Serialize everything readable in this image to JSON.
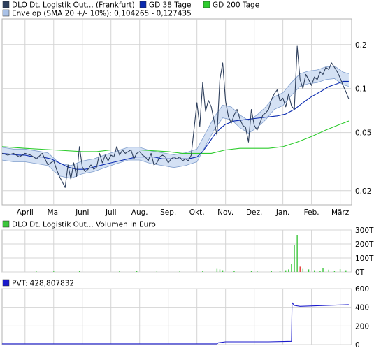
{
  "colors": {
    "price": "#2e3f5c",
    "gd38": "#0a2ab0",
    "gd200": "#2ecc2e",
    "envelope_fill": "#cddcf2",
    "envelope_line": "#7f9dcc",
    "grid": "#d4d4d4",
    "volume_green": "#3cc63c",
    "volume_red": "#e23c3c",
    "pvt": "#1a1acc"
  },
  "legend": {
    "price_label": "DLO Dt. Logistik Out... (Frankfurt)",
    "gd38_label": "GD 38 Tage",
    "gd200_label": "GD 200 Tage",
    "envelope_label": "Envelop (SMA 20 +/- 10%): 0,104265 - 0,127435",
    "volume_label": "DLO Dt. Logistik Out... Volumen in Euro",
    "pvt_label": "PVT: 428,807832"
  },
  "chart_data": [
    {
      "type": "line",
      "title": "DLO Dt. Logistik Out... (Frankfurt)",
      "y_scale": "log",
      "ylim": [
        0.016,
        0.3
      ],
      "y_ticks": [
        "0,02",
        "0,05",
        "0,1",
        "0,2"
      ],
      "y_tick_values": [
        0.02,
        0.05,
        0.1,
        0.2
      ],
      "x_ticks": [
        "April",
        "Mai",
        "Juni",
        "Juli",
        "Aug.",
        "Sep.",
        "Okt.",
        "Nov.",
        "Dez.",
        "Jan.",
        "Feb.",
        "März"
      ],
      "x_tick_values": [
        1.0,
        2.0,
        3.0,
        4.0,
        5.0,
        6.0,
        7.0,
        8.0,
        9.0,
        10.0,
        11.0,
        12.0
      ],
      "xlim": [
        0.2,
        12.4
      ],
      "grid": true,
      "legend_position": "top",
      "series": [
        {
          "name": "DLO Dt. Logistik Out... (Frankfurt)",
          "x": [
            0.2,
            0.4,
            0.6,
            0.8,
            1.0,
            1.2,
            1.4,
            1.6,
            1.8,
            2.0,
            2.1,
            2.2,
            2.3,
            2.4,
            2.5,
            2.6,
            2.7,
            2.8,
            2.9,
            3.0,
            3.1,
            3.2,
            3.3,
            3.4,
            3.5,
            3.6,
            3.7,
            3.8,
            3.9,
            4.0,
            4.1,
            4.2,
            4.3,
            4.4,
            4.5,
            4.6,
            4.7,
            4.8,
            4.9,
            5.0,
            5.1,
            5.2,
            5.3,
            5.4,
            5.5,
            5.6,
            5.7,
            5.8,
            5.9,
            6.0,
            6.1,
            6.2,
            6.3,
            6.4,
            6.5,
            6.6,
            6.7,
            6.8,
            6.9,
            7.0,
            7.1,
            7.2,
            7.3,
            7.4,
            7.5,
            7.6,
            7.7,
            7.8,
            7.9,
            8.0,
            8.1,
            8.2,
            8.3,
            8.4,
            8.5,
            8.6,
            8.7,
            8.8,
            8.9,
            9.0,
            9.1,
            9.2,
            9.3,
            9.4,
            9.5,
            9.6,
            9.7,
            9.8,
            9.9,
            10.0,
            10.1,
            10.2,
            10.3,
            10.4,
            10.5,
            10.6,
            10.7,
            10.8,
            10.9,
            11.0,
            11.1,
            11.2,
            11.3,
            11.4,
            11.5,
            11.6,
            11.7,
            11.8,
            11.9,
            12.0,
            12.1,
            12.2,
            12.3
          ],
          "y": [
            0.036,
            0.035,
            0.036,
            0.034,
            0.036,
            0.035,
            0.033,
            0.036,
            0.03,
            0.032,
            0.028,
            0.025,
            0.023,
            0.021,
            0.03,
            0.024,
            0.031,
            0.025,
            0.04,
            0.029,
            0.027,
            0.028,
            0.03,
            0.028,
            0.029,
            0.036,
            0.031,
            0.035,
            0.032,
            0.035,
            0.034,
            0.04,
            0.035,
            0.038,
            0.036,
            0.037,
            0.038,
            0.033,
            0.036,
            0.037,
            0.035,
            0.034,
            0.032,
            0.036,
            0.03,
            0.031,
            0.034,
            0.035,
            0.034,
            0.031,
            0.033,
            0.034,
            0.033,
            0.034,
            0.032,
            0.033,
            0.032,
            0.035,
            0.053,
            0.08,
            0.055,
            0.11,
            0.07,
            0.083,
            0.075,
            0.06,
            0.048,
            0.115,
            0.15,
            0.082,
            0.064,
            0.058,
            0.066,
            0.072,
            0.062,
            0.056,
            0.054,
            0.043,
            0.072,
            0.056,
            0.052,
            0.058,
            0.066,
            0.068,
            0.072,
            0.084,
            0.092,
            0.098,
            0.082,
            0.086,
            0.075,
            0.092,
            0.076,
            0.072,
            0.195,
            0.115,
            0.1,
            0.125,
            0.115,
            0.105,
            0.12,
            0.115,
            0.13,
            0.125,
            0.14,
            0.135,
            0.15,
            0.14,
            0.13,
            0.118,
            0.105,
            0.095,
            0.085
          ]
        },
        {
          "name": "GD 38 Tage",
          "x": [
            0.2,
            0.5,
            0.8,
            1.0,
            1.3,
            1.6,
            1.9,
            2.2,
            2.5,
            2.8,
            3.1,
            3.4,
            3.7,
            4.0,
            4.3,
            4.6,
            4.9,
            5.2,
            5.5,
            5.8,
            6.1,
            6.4,
            6.7,
            7.0,
            7.2,
            7.4,
            7.6,
            7.8,
            8.0,
            8.3,
            8.6,
            8.9,
            9.2,
            9.5,
            9.8,
            10.1,
            10.4,
            10.7,
            11.0,
            11.3,
            11.6,
            11.9,
            12.1,
            12.3
          ],
          "y": [
            0.036,
            0.0355,
            0.035,
            0.035,
            0.034,
            0.034,
            0.033,
            0.031,
            0.029,
            0.028,
            0.028,
            0.029,
            0.03,
            0.031,
            0.032,
            0.033,
            0.034,
            0.034,
            0.034,
            0.033,
            0.033,
            0.033,
            0.033,
            0.034,
            0.037,
            0.042,
            0.048,
            0.053,
            0.057,
            0.06,
            0.061,
            0.062,
            0.063,
            0.064,
            0.065,
            0.067,
            0.072,
            0.08,
            0.088,
            0.095,
            0.103,
            0.108,
            0.112,
            0.112
          ]
        },
        {
          "name": "GD 200 Tage",
          "x": [
            0.2,
            1.0,
            2.0,
            3.0,
            3.5,
            4.0,
            5.0,
            6.0,
            6.5,
            7.0,
            7.5,
            8.0,
            8.5,
            9.0,
            9.5,
            10.0,
            10.5,
            11.0,
            11.5,
            12.0,
            12.3
          ],
          "y": [
            0.04,
            0.039,
            0.038,
            0.037,
            0.037,
            0.038,
            0.038,
            0.037,
            0.036,
            0.036,
            0.036,
            0.038,
            0.039,
            0.039,
            0.039,
            0.04,
            0.043,
            0.047,
            0.052,
            0.057,
            0.06
          ]
        }
      ],
      "envelope": {
        "name": "Envelop (SMA 20 +/- 10%)",
        "x": [
          0.2,
          0.6,
          1.0,
          1.4,
          1.8,
          2.2,
          2.6,
          3.0,
          3.4,
          3.8,
          4.2,
          4.6,
          5.0,
          5.4,
          5.8,
          6.2,
          6.6,
          7.0,
          7.3,
          7.6,
          7.9,
          8.2,
          8.5,
          8.8,
          9.1,
          9.4,
          9.7,
          10.0,
          10.3,
          10.6,
          10.9,
          11.2,
          11.5,
          11.8,
          12.1,
          12.3
        ],
        "mid": [
          0.036,
          0.035,
          0.035,
          0.034,
          0.033,
          0.028,
          0.027,
          0.029,
          0.03,
          0.032,
          0.034,
          0.036,
          0.036,
          0.034,
          0.033,
          0.032,
          0.033,
          0.035,
          0.045,
          0.058,
          0.07,
          0.068,
          0.06,
          0.055,
          0.06,
          0.068,
          0.08,
          0.085,
          0.1,
          0.115,
          0.12,
          0.122,
          0.128,
          0.13,
          0.118,
          0.115
        ],
        "band": 0.1
      }
    },
    {
      "type": "bar",
      "title": "DLO Dt. Logistik Out... Volumen in Euro",
      "ylim": [
        0,
        300000
      ],
      "y_ticks": [
        "0T",
        "100T",
        "200T",
        "300T"
      ],
      "y_tick_values": [
        0,
        100000,
        200000,
        300000
      ],
      "xlim": [
        0.2,
        12.4
      ],
      "x": [
        1.4,
        2.0,
        2.9,
        4.3,
        4.9,
        5.6,
        6.4,
        7.2,
        7.7,
        7.8,
        7.9,
        8.3,
        8.9,
        9.1,
        9.6,
        9.9,
        10.1,
        10.2,
        10.3,
        10.4,
        10.5,
        10.6,
        10.7,
        10.9,
        11.1,
        11.3,
        11.4,
        11.6,
        11.8,
        12.0,
        12.2
      ],
      "values": [
        3000,
        4000,
        8000,
        6000,
        10000,
        3000,
        4000,
        6000,
        22000,
        18000,
        12000,
        8000,
        6000,
        6000,
        5000,
        8000,
        12000,
        18000,
        60000,
        195000,
        265000,
        38000,
        22000,
        18000,
        12000,
        10000,
        28000,
        16000,
        8000,
        20000,
        12000
      ],
      "up": [
        true,
        true,
        true,
        true,
        true,
        true,
        true,
        true,
        true,
        true,
        true,
        true,
        true,
        true,
        true,
        true,
        true,
        true,
        true,
        true,
        true,
        false,
        true,
        true,
        true,
        true,
        true,
        true,
        true,
        true,
        true
      ]
    },
    {
      "type": "line",
      "title": "PVT: 428,807832",
      "ylim": [
        0,
        600
      ],
      "y_ticks": [
        "0",
        "200",
        "400",
        "600"
      ],
      "y_tick_values": [
        0,
        200,
        400,
        600
      ],
      "xlim": [
        0.2,
        12.4
      ],
      "series": [
        {
          "name": "PVT",
          "x": [
            0.2,
            7.7,
            7.75,
            8.0,
            9.5,
            10.3,
            10.32,
            10.4,
            10.6,
            12.0,
            12.3
          ],
          "y": [
            8,
            8,
            20,
            30,
            30,
            35,
            450,
            420,
            410,
            425,
            428
          ]
        }
      ]
    }
  ]
}
